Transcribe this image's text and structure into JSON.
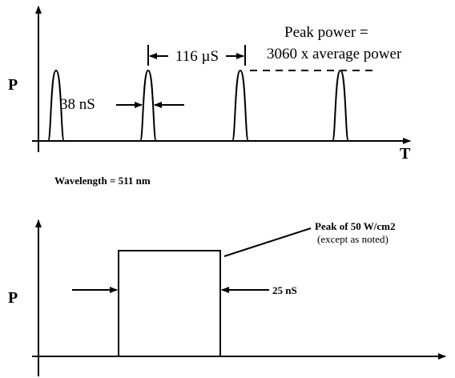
{
  "top": {
    "y_label": "P",
    "x_label": "T",
    "period": "116 µS",
    "width": "38 nS",
    "peak_line1": "Peak power =",
    "peak_line2": "3060 x average power"
  },
  "wavelength": "Wavelength = 511 nm",
  "bottom": {
    "y_label": "P",
    "peak_line1": "Peak of 50 W/cm2",
    "peak_line2": "(except as noted)",
    "width": "25 nS"
  }
}
